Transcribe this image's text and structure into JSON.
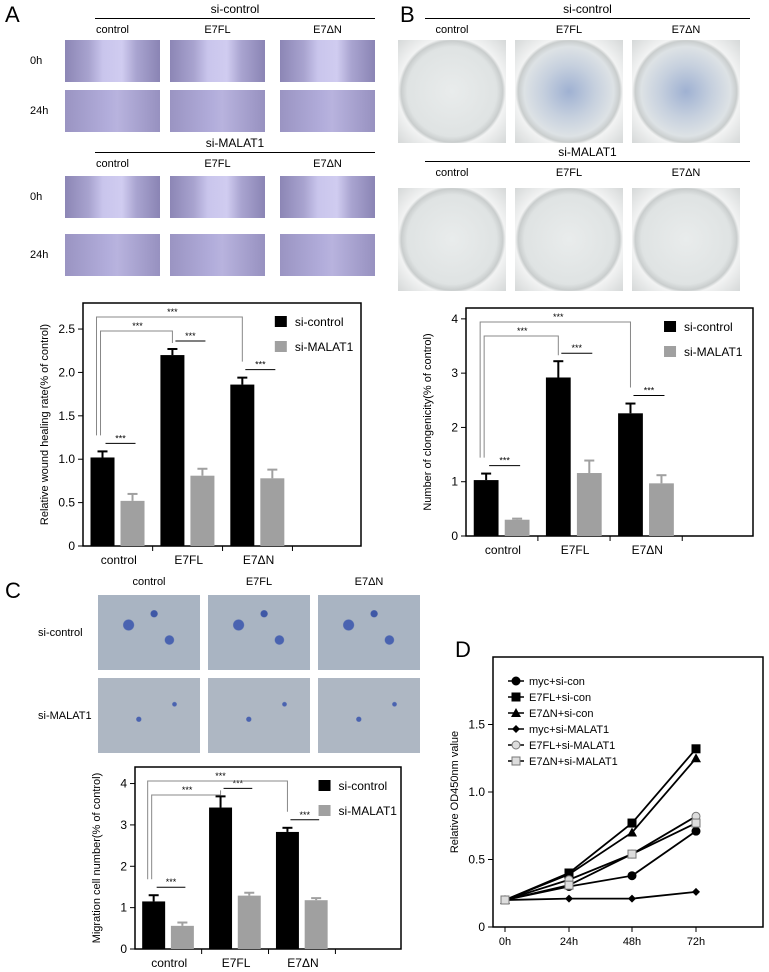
{
  "panels": {
    "A": {
      "label": "A",
      "groups": [
        {
          "title": "si-control",
          "columns": [
            "control",
            "E7FL",
            "E7ΔN"
          ],
          "rows": [
            "0h",
            "24h"
          ]
        },
        {
          "title": "si-MALAT1",
          "columns": [
            "control",
            "E7FL",
            "E7ΔN"
          ],
          "rows": [
            "0h",
            "24h"
          ]
        }
      ]
    },
    "B": {
      "label": "B",
      "groups": [
        {
          "title": "si-control",
          "columns": [
            "control",
            "E7FL",
            "E7ΔN"
          ]
        },
        {
          "title": "si-MALAT1",
          "columns": [
            "control",
            "E7FL",
            "E7ΔN"
          ]
        }
      ]
    },
    "C": {
      "label": "C",
      "columns": [
        "control",
        "E7FL",
        "E7ΔN"
      ],
      "rows": [
        "si-control",
        "si-MALAT1"
      ]
    },
    "D": {
      "label": "D"
    }
  },
  "colors": {
    "si-control": "#000000",
    "si-MALAT1": "#a0a0a0"
  },
  "chart_data": [
    {
      "type": "bar",
      "panel": "A",
      "categories": [
        "control",
        "E7FL",
        "E7ΔN"
      ],
      "series": [
        {
          "name": "si-control",
          "values": [
            1.02,
            2.2,
            1.86
          ],
          "errors": [
            0.07,
            0.07,
            0.08
          ]
        },
        {
          "name": "si-MALAT1",
          "values": [
            0.52,
            0.81,
            0.78
          ],
          "errors": [
            0.08,
            0.08,
            0.1
          ]
        }
      ],
      "ylabel": "Relative wound healing rate(% of control)",
      "ylim": [
        0,
        2.8
      ],
      "yticks": [
        "0",
        "0.5",
        "1.0",
        "1.5",
        "2.0",
        "2.5"
      ],
      "ytick_values": [
        0,
        0.5,
        1,
        1.5,
        2,
        2.5
      ],
      "legend": "top-right",
      "annotations": [
        "***",
        "***",
        "***",
        "***",
        "***"
      ]
    },
    {
      "type": "bar",
      "panel": "B",
      "categories": [
        "control",
        "E7FL",
        "E7ΔN"
      ],
      "series": [
        {
          "name": "si-control",
          "values": [
            1.03,
            2.92,
            2.26
          ],
          "errors": [
            0.12,
            0.3,
            0.18
          ]
        },
        {
          "name": "si-MALAT1",
          "values": [
            0.3,
            1.16,
            0.97
          ],
          "errors": [
            0.02,
            0.23,
            0.15
          ]
        }
      ],
      "ylabel": "Number of clongenicity(% of control)",
      "ylim": [
        0,
        4.2
      ],
      "yticks": [
        "0",
        "1",
        "2",
        "3",
        "4"
      ],
      "ytick_values": [
        0,
        1,
        2,
        3,
        4
      ],
      "legend": "top-right",
      "annotations": [
        "***",
        "***",
        "***",
        "***",
        "***"
      ]
    },
    {
      "type": "bar",
      "panel": "C",
      "categories": [
        "control",
        "E7FL",
        "E7ΔN"
      ],
      "series": [
        {
          "name": "si-control",
          "values": [
            1.15,
            3.42,
            2.83
          ],
          "errors": [
            0.15,
            0.27,
            0.1
          ]
        },
        {
          "name": "si-MALAT1",
          "values": [
            0.56,
            1.29,
            1.18
          ],
          "errors": [
            0.08,
            0.07,
            0.05
          ]
        }
      ],
      "ylabel": "Migration cell number(% of control)",
      "ylim": [
        0,
        4.4
      ],
      "yticks": [
        "0",
        "1",
        "2",
        "3",
        "4"
      ],
      "ytick_values": [
        0,
        1,
        2,
        3,
        4
      ],
      "legend": "top-right",
      "annotations": [
        "***",
        "***",
        "***",
        "***",
        "***"
      ]
    },
    {
      "type": "line",
      "panel": "D",
      "x": [
        "0h",
        "24h",
        "48h",
        "72h"
      ],
      "series": [
        {
          "name": "myc+si-con",
          "marker": "circle",
          "values": [
            0.2,
            0.3,
            0.38,
            0.71
          ]
        },
        {
          "name": "E7FL+si-con",
          "marker": "square",
          "values": [
            0.2,
            0.4,
            0.77,
            1.32
          ]
        },
        {
          "name": "E7ΔN+si-con",
          "marker": "triangle",
          "values": [
            0.2,
            0.39,
            0.7,
            1.25
          ]
        },
        {
          "name": "myc+si-MALAT1",
          "marker": "diamond",
          "values": [
            0.2,
            0.21,
            0.21,
            0.26
          ]
        },
        {
          "name": "E7FL+si-MALAT1",
          "marker": "open-circle",
          "values": [
            0.2,
            0.35,
            0.54,
            0.82
          ]
        },
        {
          "name": "E7ΔN+si-MALAT1",
          "marker": "open-square",
          "values": [
            0.2,
            0.31,
            0.54,
            0.77
          ]
        }
      ],
      "ylabel": "Relative OD450nm value",
      "ylim": [
        0,
        2.0
      ],
      "yticks": [
        "0",
        "0.5",
        "1.0",
        "1.5"
      ],
      "ytick_values": [
        0,
        0.5,
        1,
        1.5
      ],
      "legend": "top-left"
    }
  ]
}
